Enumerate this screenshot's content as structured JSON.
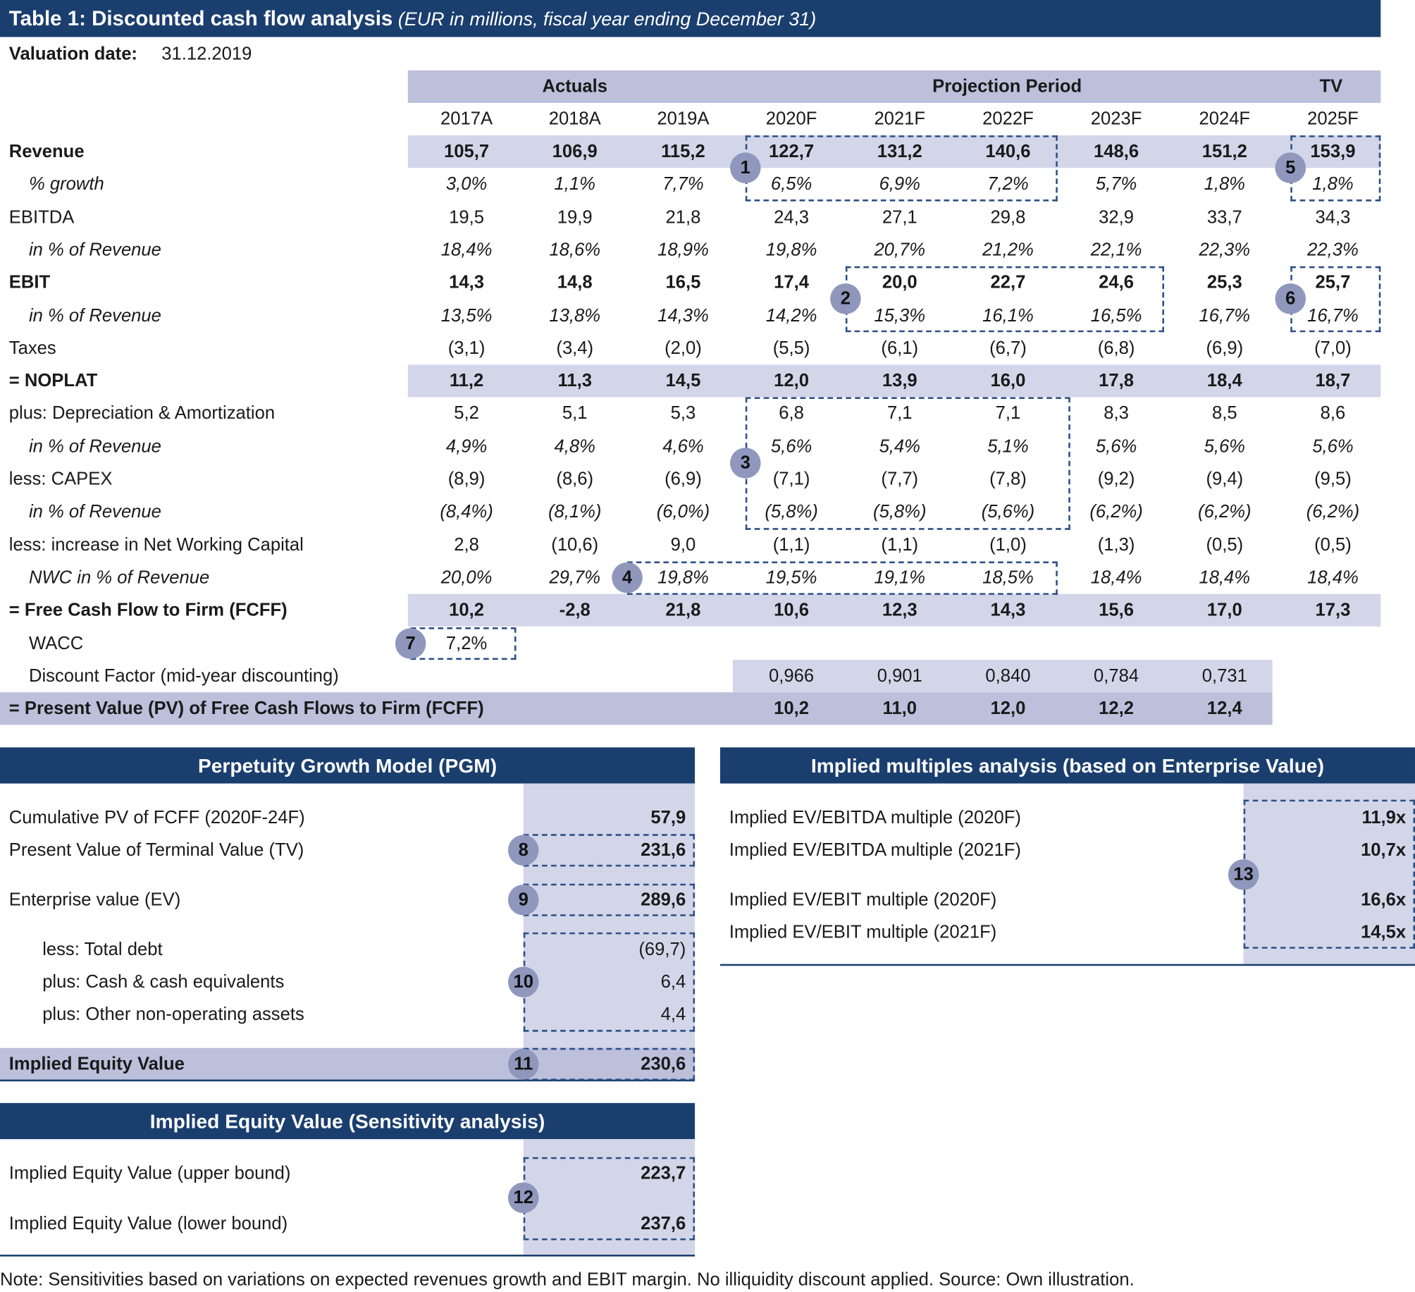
{
  "title": "Table 1: Discounted cash flow analysis",
  "subtitle": "(EUR in millions, fiscal year ending December 31)",
  "valuation_label": "Valuation date:",
  "valuation_date": "31.12.2019",
  "groups": [
    "Actuals",
    "Projection Period",
    "TV"
  ],
  "years": [
    "2017A",
    "2018A",
    "2019A",
    "2020F",
    "2021F",
    "2022F",
    "2023F",
    "2024F",
    "2025F"
  ],
  "rows": [
    {
      "label": "Revenue",
      "cells": [
        "105,7",
        "106,9",
        "115,2",
        "122,7",
        "131,2",
        "140,6",
        "148,6",
        "151,2",
        "153,9"
      ]
    },
    {
      "label": "% growth",
      "cells": [
        "3,0%",
        "1,1%",
        "7,7%",
        "6,5%",
        "6,9%",
        "7,2%",
        "5,7%",
        "1,8%",
        "1,8%"
      ]
    },
    {
      "label": "EBITDA",
      "cells": [
        "19,5",
        "19,9",
        "21,8",
        "24,3",
        "27,1",
        "29,8",
        "32,9",
        "33,7",
        "34,3"
      ]
    },
    {
      "label": "in % of Revenue",
      "cells": [
        "18,4%",
        "18,6%",
        "18,9%",
        "19,8%",
        "20,7%",
        "21,2%",
        "22,1%",
        "22,3%",
        "22,3%"
      ]
    },
    {
      "label": "EBIT",
      "cells": [
        "14,3",
        "14,8",
        "16,5",
        "17,4",
        "20,0",
        "22,7",
        "24,6",
        "25,3",
        "25,7"
      ]
    },
    {
      "label": "in % of Revenue",
      "cells": [
        "13,5%",
        "13,8%",
        "14,3%",
        "14,2%",
        "15,3%",
        "16,1%",
        "16,5%",
        "16,7%",
        "16,7%"
      ]
    },
    {
      "label": "Taxes",
      "cells": [
        "(3,1)",
        "(3,4)",
        "(2,0)",
        "(5,5)",
        "(6,1)",
        "(6,7)",
        "(6,8)",
        "(6,9)",
        "(7,0)"
      ]
    },
    {
      "label": "= NOPLAT",
      "cells": [
        "11,2",
        "11,3",
        "14,5",
        "12,0",
        "13,9",
        "16,0",
        "17,8",
        "18,4",
        "18,7"
      ]
    },
    {
      "label": "plus: Depreciation & Amortization",
      "cells": [
        "5,2",
        "5,1",
        "5,3",
        "6,8",
        "7,1",
        "7,1",
        "8,3",
        "8,5",
        "8,6"
      ]
    },
    {
      "label": "in % of Revenue",
      "cells": [
        "4,9%",
        "4,8%",
        "4,6%",
        "5,6%",
        "5,4%",
        "5,1%",
        "5,6%",
        "5,6%",
        "5,6%"
      ]
    },
    {
      "label": "less: CAPEX",
      "cells": [
        "(8,9)",
        "(8,6)",
        "(6,9)",
        "(7,1)",
        "(7,7)",
        "(7,8)",
        "(9,2)",
        "(9,4)",
        "(9,5)"
      ]
    },
    {
      "label": "in % of Revenue",
      "cells": [
        "(8,4%)",
        "(8,1%)",
        "(6,0%)",
        "(5,8%)",
        "(5,8%)",
        "(5,6%)",
        "(6,2%)",
        "(6,2%)",
        "(6,2%)"
      ]
    },
    {
      "label": "less: increase in Net Working Capital",
      "cells": [
        "2,8",
        "(10,6)",
        "9,0",
        "(1,1)",
        "(1,1)",
        "(1,0)",
        "(1,3)",
        "(0,5)",
        "(0,5)"
      ]
    },
    {
      "label": "NWC in % of Revenue",
      "cells": [
        "20,0%",
        "29,7%",
        "19,8%",
        "19,5%",
        "19,1%",
        "18,5%",
        "18,4%",
        "18,4%",
        "18,4%"
      ]
    },
    {
      "label": "= Free Cash Flow to Firm (FCFF)",
      "cells": [
        "10,2",
        "-2,8",
        "21,8",
        "10,6",
        "12,3",
        "14,3",
        "15,6",
        "17,0",
        "17,3"
      ]
    },
    {
      "label": "WACC",
      "cells": [
        "7,2%"
      ]
    },
    {
      "label": "Discount Factor (mid-year discounting)",
      "cells": [
        "0,966",
        "0,901",
        "0,840",
        "0,784",
        "0,731"
      ]
    },
    {
      "label": "= Present Value (PV) of Free Cash Flows to Firm (FCFF)",
      "cells": [
        "10,2",
        "11,0",
        "12,0",
        "12,2",
        "12,4"
      ]
    }
  ],
  "pgm": {
    "title": "Perpetuity Growth Model (PGM)",
    "rows": [
      {
        "label": "Cumulative PV of FCFF (2020F-24F)",
        "value": "57,9"
      },
      {
        "label": "Present Value of Terminal Value (TV)",
        "value": "231,6"
      },
      {
        "label": "Enterprise value (EV)",
        "value": "289,6"
      },
      {
        "label": "less: Total debt",
        "value": "(69,7)"
      },
      {
        "label": "plus: Cash & cash equivalents",
        "value": "6,4"
      },
      {
        "label": "plus: Other non-operating assets",
        "value": "4,4"
      },
      {
        "label": "Implied Equity Value",
        "value": "230,6"
      }
    ]
  },
  "sensitivity": {
    "title": "Implied Equity Value (Sensitivity analysis)",
    "rows": [
      {
        "label": "Implied Equity Value (upper bound)",
        "value": "223,7"
      },
      {
        "label": "Implied Equity Value (lower bound)",
        "value": "237,6"
      }
    ]
  },
  "multiples": {
    "title": "Implied multiples analysis (based on Enterprise Value)",
    "rows": [
      {
        "label": "Implied EV/EBITDA multiple (2020F)",
        "value": "11,9x"
      },
      {
        "label": "Implied EV/EBITDA multiple (2021F)",
        "value": "10,7x"
      },
      {
        "label": "Implied EV/EBIT multiple (2020F)",
        "value": "16,6x"
      },
      {
        "label": "Implied EV/EBIT multiple (2021F)",
        "value": "14,5x"
      }
    ]
  },
  "markers": [
    "1",
    "2",
    "3",
    "4",
    "5",
    "6",
    "7",
    "8",
    "9",
    "10",
    "11",
    "12",
    "13"
  ],
  "note": "Note: Sensitivities based on variations on expected revenues growth and EBIT margin. No illiquidity discount applied. Source: Own illustration."
}
